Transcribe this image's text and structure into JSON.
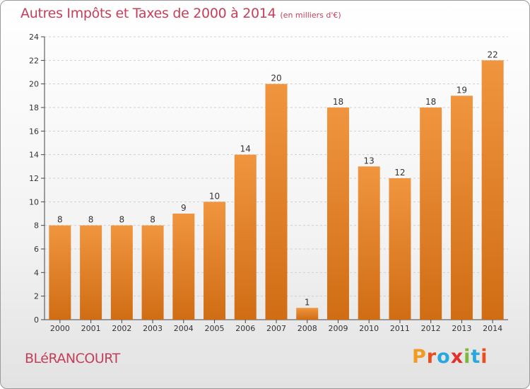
{
  "title": "Autres Impôts et Taxes de 2000 à 2014",
  "subtitle": "(en milliers d'€)",
  "commune": "BLéRANCOURT",
  "logo": {
    "letters": [
      "P",
      "r",
      "o",
      "x",
      "i",
      "t",
      "i"
    ],
    "colors": [
      "#f29a21",
      "#e94e1b",
      "#29a8e0",
      "#e2312d",
      "#7cb83b",
      "#29a8e0",
      "#e94e1b"
    ]
  },
  "colors": {
    "bar": "#f0953f",
    "bar_dark": "#d06d14",
    "title": "#c43f59"
  },
  "chart_data": {
    "type": "bar",
    "categories": [
      "2000",
      "2001",
      "2002",
      "2003",
      "2004",
      "2005",
      "2006",
      "2007",
      "2008",
      "2009",
      "2010",
      "2011",
      "2012",
      "2013",
      "2014"
    ],
    "values": [
      8,
      8,
      8,
      8,
      9,
      10,
      14,
      20,
      1,
      18,
      13,
      12,
      18,
      19,
      22
    ],
    "ylim": [
      0,
      24
    ],
    "yticks": [
      0,
      2,
      4,
      6,
      8,
      10,
      12,
      14,
      16,
      18,
      20,
      22,
      24
    ],
    "grid": true
  }
}
